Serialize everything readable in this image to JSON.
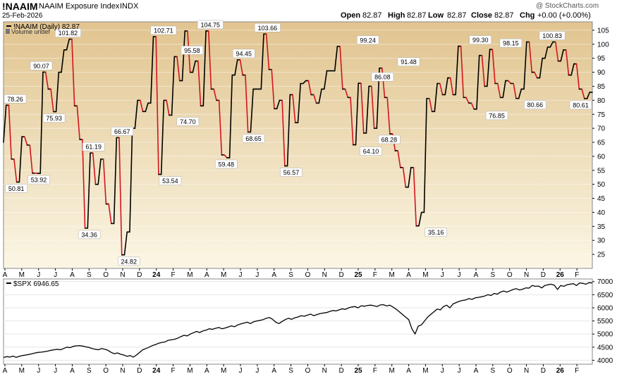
{
  "header": {
    "symbol": "!NAAIM",
    "name": "NAAIM Exposure Index",
    "exchange": "INDX",
    "date": "25-Feb-2026",
    "open_label": "Open",
    "open": "82.87",
    "high_label": "High",
    "high": "82.87",
    "low_label": "Low",
    "low": "82.87",
    "close_label": "Close",
    "close": "82.87",
    "chg_label": "Chg",
    "chg": "+0.00 (+0.00%)",
    "watermark": "@ StockCharts.com"
  },
  "colors": {
    "up": "#000000",
    "down": "#d2141e",
    "panel_top": "#e1c48f",
    "panel_bottom": "#fbf6e4"
  },
  "chart_data": [
    {
      "type": "line",
      "legend_label": "!NAAIM (Daily) 82.87",
      "volume_label": "Volume undef",
      "x_labels": [
        "A",
        "M",
        "J",
        "J",
        "A",
        "S",
        "O",
        "N",
        "D",
        "24",
        "F",
        "M",
        "A",
        "M",
        "J",
        "J",
        "A",
        "S",
        "O",
        "N",
        "D",
        "25",
        "F",
        "M",
        "A",
        "M",
        "J",
        "J",
        "A",
        "S",
        "O",
        "N",
        "D",
        "26",
        "F"
      ],
      "y_ticks": [
        25,
        30,
        35,
        40,
        45,
        50,
        55,
        60,
        65,
        70,
        75,
        80,
        85,
        90,
        95,
        100,
        105
      ],
      "ylim": [
        20,
        108
      ],
      "x_range": [
        0,
        96.8
      ],
      "values": [
        65,
        78.26,
        78.26,
        59,
        59,
        50.81,
        50.81,
        67,
        67,
        64,
        64,
        54,
        54,
        53.92,
        53.92,
        90.07,
        90.07,
        84,
        84,
        75.93,
        75.93,
        90,
        90,
        98,
        98,
        101.82,
        101.82,
        78,
        78,
        66,
        66,
        34.36,
        34.36,
        61.19,
        61.19,
        50,
        50,
        59,
        59,
        43,
        43,
        36,
        36,
        66.67,
        66.67,
        24.82,
        24.82,
        33,
        33,
        70,
        70,
        80,
        80,
        76,
        76,
        79,
        79,
        102.71,
        102.71,
        53.54,
        53.54,
        80,
        80,
        74.7,
        74.7,
        95.58,
        95.58,
        87,
        87,
        104.75,
        104.75,
        90,
        90,
        94,
        94,
        78,
        78,
        104.75,
        104.75,
        84,
        84,
        80,
        80,
        60.5,
        60.5,
        59.48,
        59.48,
        89,
        89,
        94.45,
        94.45,
        89,
        89,
        68.65,
        68.65,
        84,
        84,
        84,
        84,
        103.66,
        103.66,
        91,
        91,
        77,
        77,
        80,
        80,
        56.57,
        56.57,
        82,
        82,
        72,
        72,
        86,
        86,
        87,
        87,
        82,
        82,
        79,
        79,
        84,
        84,
        90.5,
        90.5,
        90.5,
        90.5,
        99.24,
        99.24,
        84,
        84,
        81,
        81,
        64.1,
        64.1,
        86.08,
        86.08,
        68.28,
        68.28,
        85,
        85,
        70,
        70,
        91.48,
        91.48,
        81,
        81,
        68,
        68,
        62,
        62,
        56,
        56,
        49,
        49,
        56,
        56,
        35.16,
        35.16,
        40,
        40,
        80.66,
        80.66,
        76,
        76,
        86,
        86,
        82,
        82,
        88,
        88,
        82,
        82,
        99.3,
        99.3,
        81,
        81,
        79,
        79,
        76.85,
        76.85,
        96,
        96,
        85,
        85,
        98.15,
        98.15,
        86,
        86,
        81,
        81,
        87,
        87,
        86,
        86,
        80.66,
        80.66,
        84,
        84,
        100.83,
        100.83,
        90,
        90,
        88,
        88,
        95,
        95,
        99,
        99,
        100.83,
        100.83,
        94,
        94,
        98,
        98,
        89,
        89,
        93,
        93,
        84,
        84,
        80.61,
        80.61,
        82.87,
        82.87
      ],
      "labeled_points": [
        {
          "label": "78.26",
          "x": 0.5,
          "y": 78.26,
          "pos": "top"
        },
        {
          "label": "50.81",
          "x": 2.1,
          "y": 50.81,
          "pos": "bottom"
        },
        {
          "label": "53.92",
          "x": 5.8,
          "y": 53.92,
          "pos": "bottom"
        },
        {
          "label": "90.07",
          "x": 6.2,
          "y": 90.07,
          "pos": "top"
        },
        {
          "label": "75.93",
          "x": 8.3,
          "y": 75.93,
          "pos": "bottom"
        },
        {
          "label": "101.82",
          "x": 10.6,
          "y": 101.82,
          "pos": "top"
        },
        {
          "label": "34.36",
          "x": 14.1,
          "y": 34.36,
          "pos": "bottom"
        },
        {
          "label": "61.19",
          "x": 14.8,
          "y": 61.19,
          "pos": "top"
        },
        {
          "label": "66.67",
          "x": 19.5,
          "y": 66.67,
          "pos": "top"
        },
        {
          "label": "24.82",
          "x": 20.6,
          "y": 24.82,
          "pos": "bottom"
        },
        {
          "label": "102.71",
          "x": 26.3,
          "y": 102.71,
          "pos": "top"
        },
        {
          "label": "53.54",
          "x": 27.4,
          "y": 53.54,
          "pos": "bottom"
        },
        {
          "label": "95.58",
          "x": 31.0,
          "y": 95.58,
          "pos": "top"
        },
        {
          "label": "74.70",
          "x": 30.3,
          "y": 74.7,
          "pos": "bottom"
        },
        {
          "label": "104.75",
          "x": 34.0,
          "y": 104.75,
          "pos": "top"
        },
        {
          "label": "59.48",
          "x": 36.6,
          "y": 59.48,
          "pos": "bottom"
        },
        {
          "label": "94.45",
          "x": 39.5,
          "y": 94.45,
          "pos": "top"
        },
        {
          "label": "68.65",
          "x": 41.1,
          "y": 68.65,
          "pos": "bottom"
        },
        {
          "label": "103.66",
          "x": 43.4,
          "y": 103.66,
          "pos": "top"
        },
        {
          "label": "56.57",
          "x": 47.3,
          "y": 56.57,
          "pos": "bottom"
        },
        {
          "label": "99.24",
          "x": 59.9,
          "y": 99.24,
          "pos": "top"
        },
        {
          "label": "64.10",
          "x": 60.4,
          "y": 64.1,
          "pos": "bottom"
        },
        {
          "label": "86.08",
          "x": 62.3,
          "y": 86.08,
          "pos": "top"
        },
        {
          "label": "68.28",
          "x": 63.4,
          "y": 68.28,
          "pos": "bottom"
        },
        {
          "label": "91.48",
          "x": 66.6,
          "y": 91.48,
          "pos": "top"
        },
        {
          "label": "35.16",
          "x": 71.1,
          "y": 35.16,
          "pos": "bottom"
        },
        {
          "label": "99.30",
          "x": 78.4,
          "y": 99.3,
          "pos": "top"
        },
        {
          "label": "76.85",
          "x": 81.1,
          "y": 76.85,
          "pos": "bottom"
        },
        {
          "label": "98.15",
          "x": 83.4,
          "y": 98.15,
          "pos": "top"
        },
        {
          "label": "80.66",
          "x": 87.4,
          "y": 80.66,
          "pos": "bottom"
        },
        {
          "label": "100.83",
          "x": 90.2,
          "y": 100.83,
          "pos": "top"
        },
        {
          "label": "80.61",
          "x": 99.5,
          "y": 80.61,
          "pos": "bottom"
        }
      ]
    },
    {
      "type": "line",
      "legend_label": "$SPX 6946.65",
      "x_labels": [
        "A",
        "M",
        "J",
        "J",
        "A",
        "S",
        "O",
        "N",
        "D",
        "24",
        "F",
        "M",
        "A",
        "M",
        "J",
        "J",
        "A",
        "S",
        "O",
        "N",
        "D",
        "25",
        "F",
        "M",
        "A",
        "M",
        "J",
        "J",
        "A",
        "S",
        "O",
        "N",
        "D",
        "26",
        "F"
      ],
      "y_ticks": [
        4000,
        4500,
        5000,
        5500,
        6000,
        6500,
        7000
      ],
      "ylim": [
        3850,
        7100
      ],
      "values": [
        4105,
        4140,
        4120,
        4160,
        4110,
        4150,
        4180,
        4200,
        4220,
        4250,
        4280,
        4300,
        4310,
        4330,
        4350,
        4380,
        4400,
        4420,
        4400,
        4450,
        4500,
        4480,
        4530,
        4550,
        4560,
        4540,
        4510,
        4490,
        4450,
        4420,
        4400,
        4450,
        4420,
        4380,
        4300,
        4250,
        4280,
        4230,
        4200,
        4150,
        4180,
        4120,
        4200,
        4300,
        4400,
        4450,
        4500,
        4560,
        4600,
        4650,
        4680,
        4700,
        4760,
        4780,
        4800,
        4840,
        4900,
        4950,
        4930,
        5000,
        5050,
        5100,
        5060,
        5120,
        5150,
        5200,
        5180,
        5220,
        5250,
        5200,
        5230,
        5270,
        5310,
        5280,
        5350,
        5390,
        5420,
        5450,
        5400,
        5470,
        5500,
        5520,
        5550,
        5600,
        5630,
        5560,
        5450,
        5400,
        5480,
        5550,
        5600,
        5560,
        5620,
        5650,
        5700,
        5680,
        5720,
        5760,
        5700,
        5740,
        5780,
        5800,
        5820,
        5860,
        5900,
        5880,
        5920,
        5960,
        5940,
        6000,
        6030,
        6050,
        6000,
        6080,
        6060,
        6090,
        6100,
        6080,
        6050,
        6110,
        6120,
        6070,
        6100,
        6030,
        5950,
        5850,
        5750,
        5650,
        5550,
        5200,
        5000,
        5300,
        5350,
        5500,
        5650,
        5750,
        5850,
        5950,
        5920,
        6050,
        6100,
        6000,
        6150,
        6200,
        6250,
        6280,
        6300,
        6350,
        6320,
        6380,
        6400,
        6420,
        6450,
        6500,
        6470,
        6550,
        6520,
        6600,
        6640,
        6600,
        6650,
        6700,
        6730,
        6680,
        6710,
        6760,
        6750,
        6850,
        6820,
        6830,
        6760,
        6850,
        6880,
        6900,
        6860,
        6700,
        6850,
        6820,
        6880,
        6900,
        6920,
        6850,
        6950,
        6930,
        6900,
        6960,
        6946.65
      ]
    }
  ]
}
